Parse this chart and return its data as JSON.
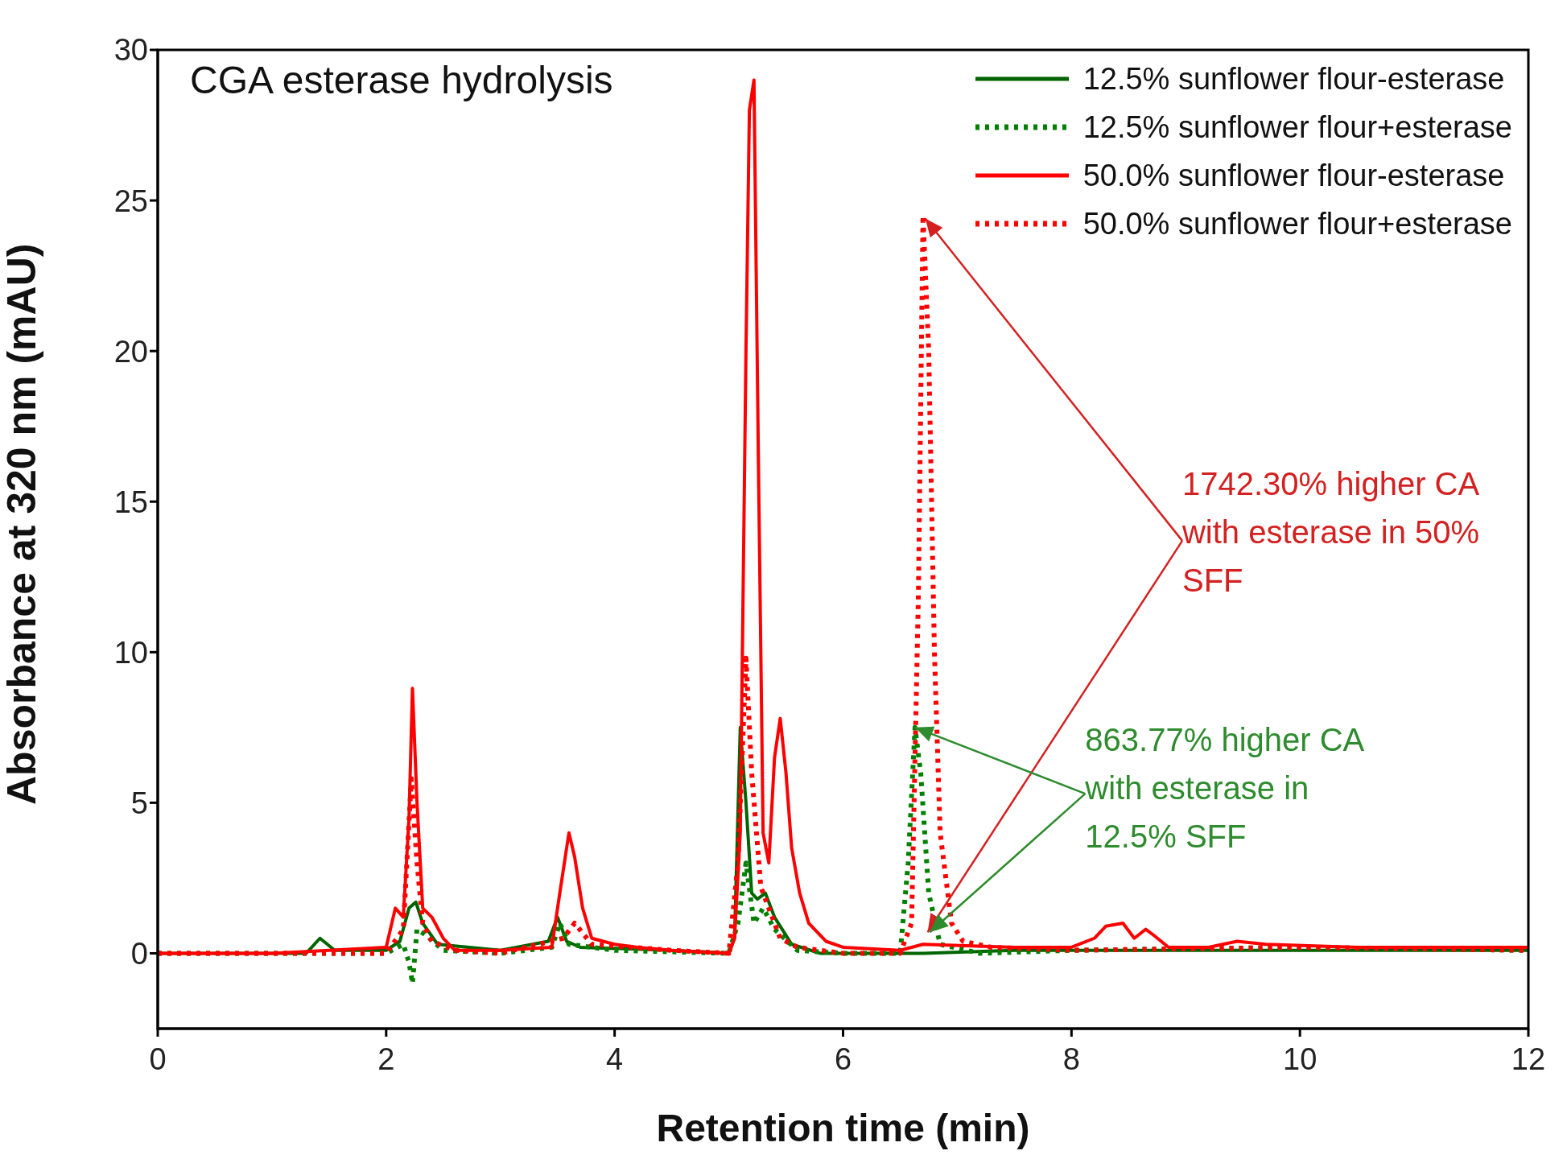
{
  "chart_data": {
    "type": "line",
    "title": "CGA esterase hydrolysis",
    "xlabel": "Retention time (min)",
    "ylabel": "Absorbance at 320 nm (mAU)",
    "xlim": [
      0,
      12
    ],
    "xticks": [
      0,
      2,
      4,
      6,
      8,
      10,
      12
    ],
    "ylim": [
      -2.5,
      30
    ],
    "yticks": [
      0,
      5,
      10,
      15,
      20,
      25,
      30
    ],
    "grid": false,
    "legend": "top right",
    "marker": "none",
    "series": [
      {
        "name": "12.5% sunflower flour-esterase",
        "color": "#006400",
        "line_style": "solid",
        "x": [
          0,
          1.3,
          1.42,
          1.55,
          2.0,
          2.12,
          2.2,
          2.26,
          2.32,
          2.45,
          3.0,
          3.42,
          3.5,
          3.58,
          3.7,
          4.5,
          5.0,
          5.05,
          5.1,
          5.15,
          5.2,
          5.25,
          5.32,
          5.4,
          5.55,
          5.8,
          6.5,
          6.7,
          7.5,
          8.5,
          10,
          12
        ],
        "values": [
          0,
          0,
          0.5,
          0.1,
          0.1,
          0.4,
          1.5,
          1.7,
          1.0,
          0.3,
          0.1,
          0.4,
          1.2,
          0.4,
          0.2,
          0.1,
          0,
          0.5,
          7.5,
          5,
          2,
          1.8,
          2.0,
          1.2,
          0.3,
          0,
          0,
          0,
          0.1,
          0.1,
          0.1,
          0.1
        ]
      },
      {
        "name": "12.5% sunflower flour+esterase",
        "color": "#008000",
        "line_style": "dotted",
        "x": [
          0,
          2.0,
          2.15,
          2.2,
          2.23,
          2.27,
          2.35,
          2.5,
          3.0,
          3.45,
          3.52,
          3.6,
          4.0,
          5.0,
          5.08,
          5.15,
          5.22,
          5.3,
          5.4,
          5.6,
          6.0,
          6.5,
          6.57,
          6.63,
          6.68,
          6.75,
          6.85,
          7.2,
          8,
          10,
          12
        ],
        "values": [
          0,
          0,
          0.3,
          -0.3,
          -1.0,
          0.8,
          0.6,
          0.1,
          0,
          0.2,
          1.0,
          0.3,
          0.1,
          0,
          1.0,
          3.0,
          1.0,
          1.5,
          0.8,
          0.1,
          0,
          0,
          3,
          7.5,
          6,
          2,
          0.3,
          0,
          0.1,
          0.2,
          0.1
        ]
      },
      {
        "name": "50.0% sunflower flour-esterase",
        "color": "#ff0000",
        "line_style": "solid",
        "x": [
          0,
          1.0,
          2.0,
          2.08,
          2.15,
          2.2,
          2.23,
          2.27,
          2.32,
          2.4,
          2.5,
          2.6,
          3.0,
          3.45,
          3.52,
          3.6,
          3.65,
          3.72,
          3.8,
          4.0,
          4.2,
          4.5,
          5.0,
          5.05,
          5.1,
          5.15,
          5.18,
          5.22,
          5.26,
          5.3,
          5.35,
          5.4,
          5.45,
          5.5,
          5.55,
          5.62,
          5.7,
          5.85,
          6.0,
          6.5,
          6.7,
          7.5,
          8.0,
          8.2,
          8.3,
          8.45,
          8.55,
          8.65,
          8.72,
          8.85,
          9.2,
          9.45,
          9.7,
          10.5,
          12
        ],
        "values": [
          0,
          0,
          0.2,
          1.5,
          1.2,
          4.5,
          8.8,
          5.0,
          1.5,
          1.2,
          0.5,
          0.1,
          0.1,
          0.2,
          2.0,
          4.0,
          3.2,
          1.5,
          0.5,
          0.3,
          0.2,
          0.1,
          0,
          0.5,
          4.0,
          20,
          28,
          29,
          16,
          4.0,
          3.0,
          6.5,
          7.8,
          6.0,
          3.5,
          2.0,
          1.0,
          0.4,
          0.2,
          0.1,
          0.3,
          0.2,
          0.2,
          0.5,
          0.9,
          1.0,
          0.5,
          0.8,
          0.6,
          0.2,
          0.2,
          0.4,
          0.3,
          0.2,
          0.2
        ]
      },
      {
        "name": "50.0% sunflower flour+esterase",
        "color": "#ff0000",
        "line_style": "dotted",
        "x": [
          0,
          2.0,
          2.15,
          2.22,
          2.27,
          2.32,
          2.4,
          2.6,
          3.0,
          3.55,
          3.65,
          3.8,
          4.5,
          5.0,
          5.08,
          5.15,
          5.2,
          5.28,
          5.35,
          5.45,
          5.6,
          6.0,
          6.5,
          6.6,
          6.66,
          6.7,
          6.75,
          6.8,
          6.85,
          6.95,
          7.05,
          7.3,
          8,
          10,
          12
        ],
        "values": [
          0,
          0,
          0.8,
          5.8,
          3.0,
          1.0,
          0.4,
          0.1,
          0,
          0.5,
          1.0,
          0.3,
          0.1,
          0,
          3.0,
          9.8,
          6.0,
          2.2,
          1.5,
          0.5,
          0.2,
          0,
          0,
          1.0,
          12,
          24.5,
          20,
          10,
          4,
          1.0,
          0.4,
          0.2,
          0.1,
          0.2,
          0.1
        ]
      }
    ],
    "annotations": [
      {
        "text": "1742.30% higher CA with esterase in 50% SFF",
        "x": 6.72,
        "y": 24.4
      },
      {
        "text": "863.77% higher CA with esterase in 12.5% SFF",
        "x": 6.63,
        "y": 7.5
      }
    ]
  }
}
